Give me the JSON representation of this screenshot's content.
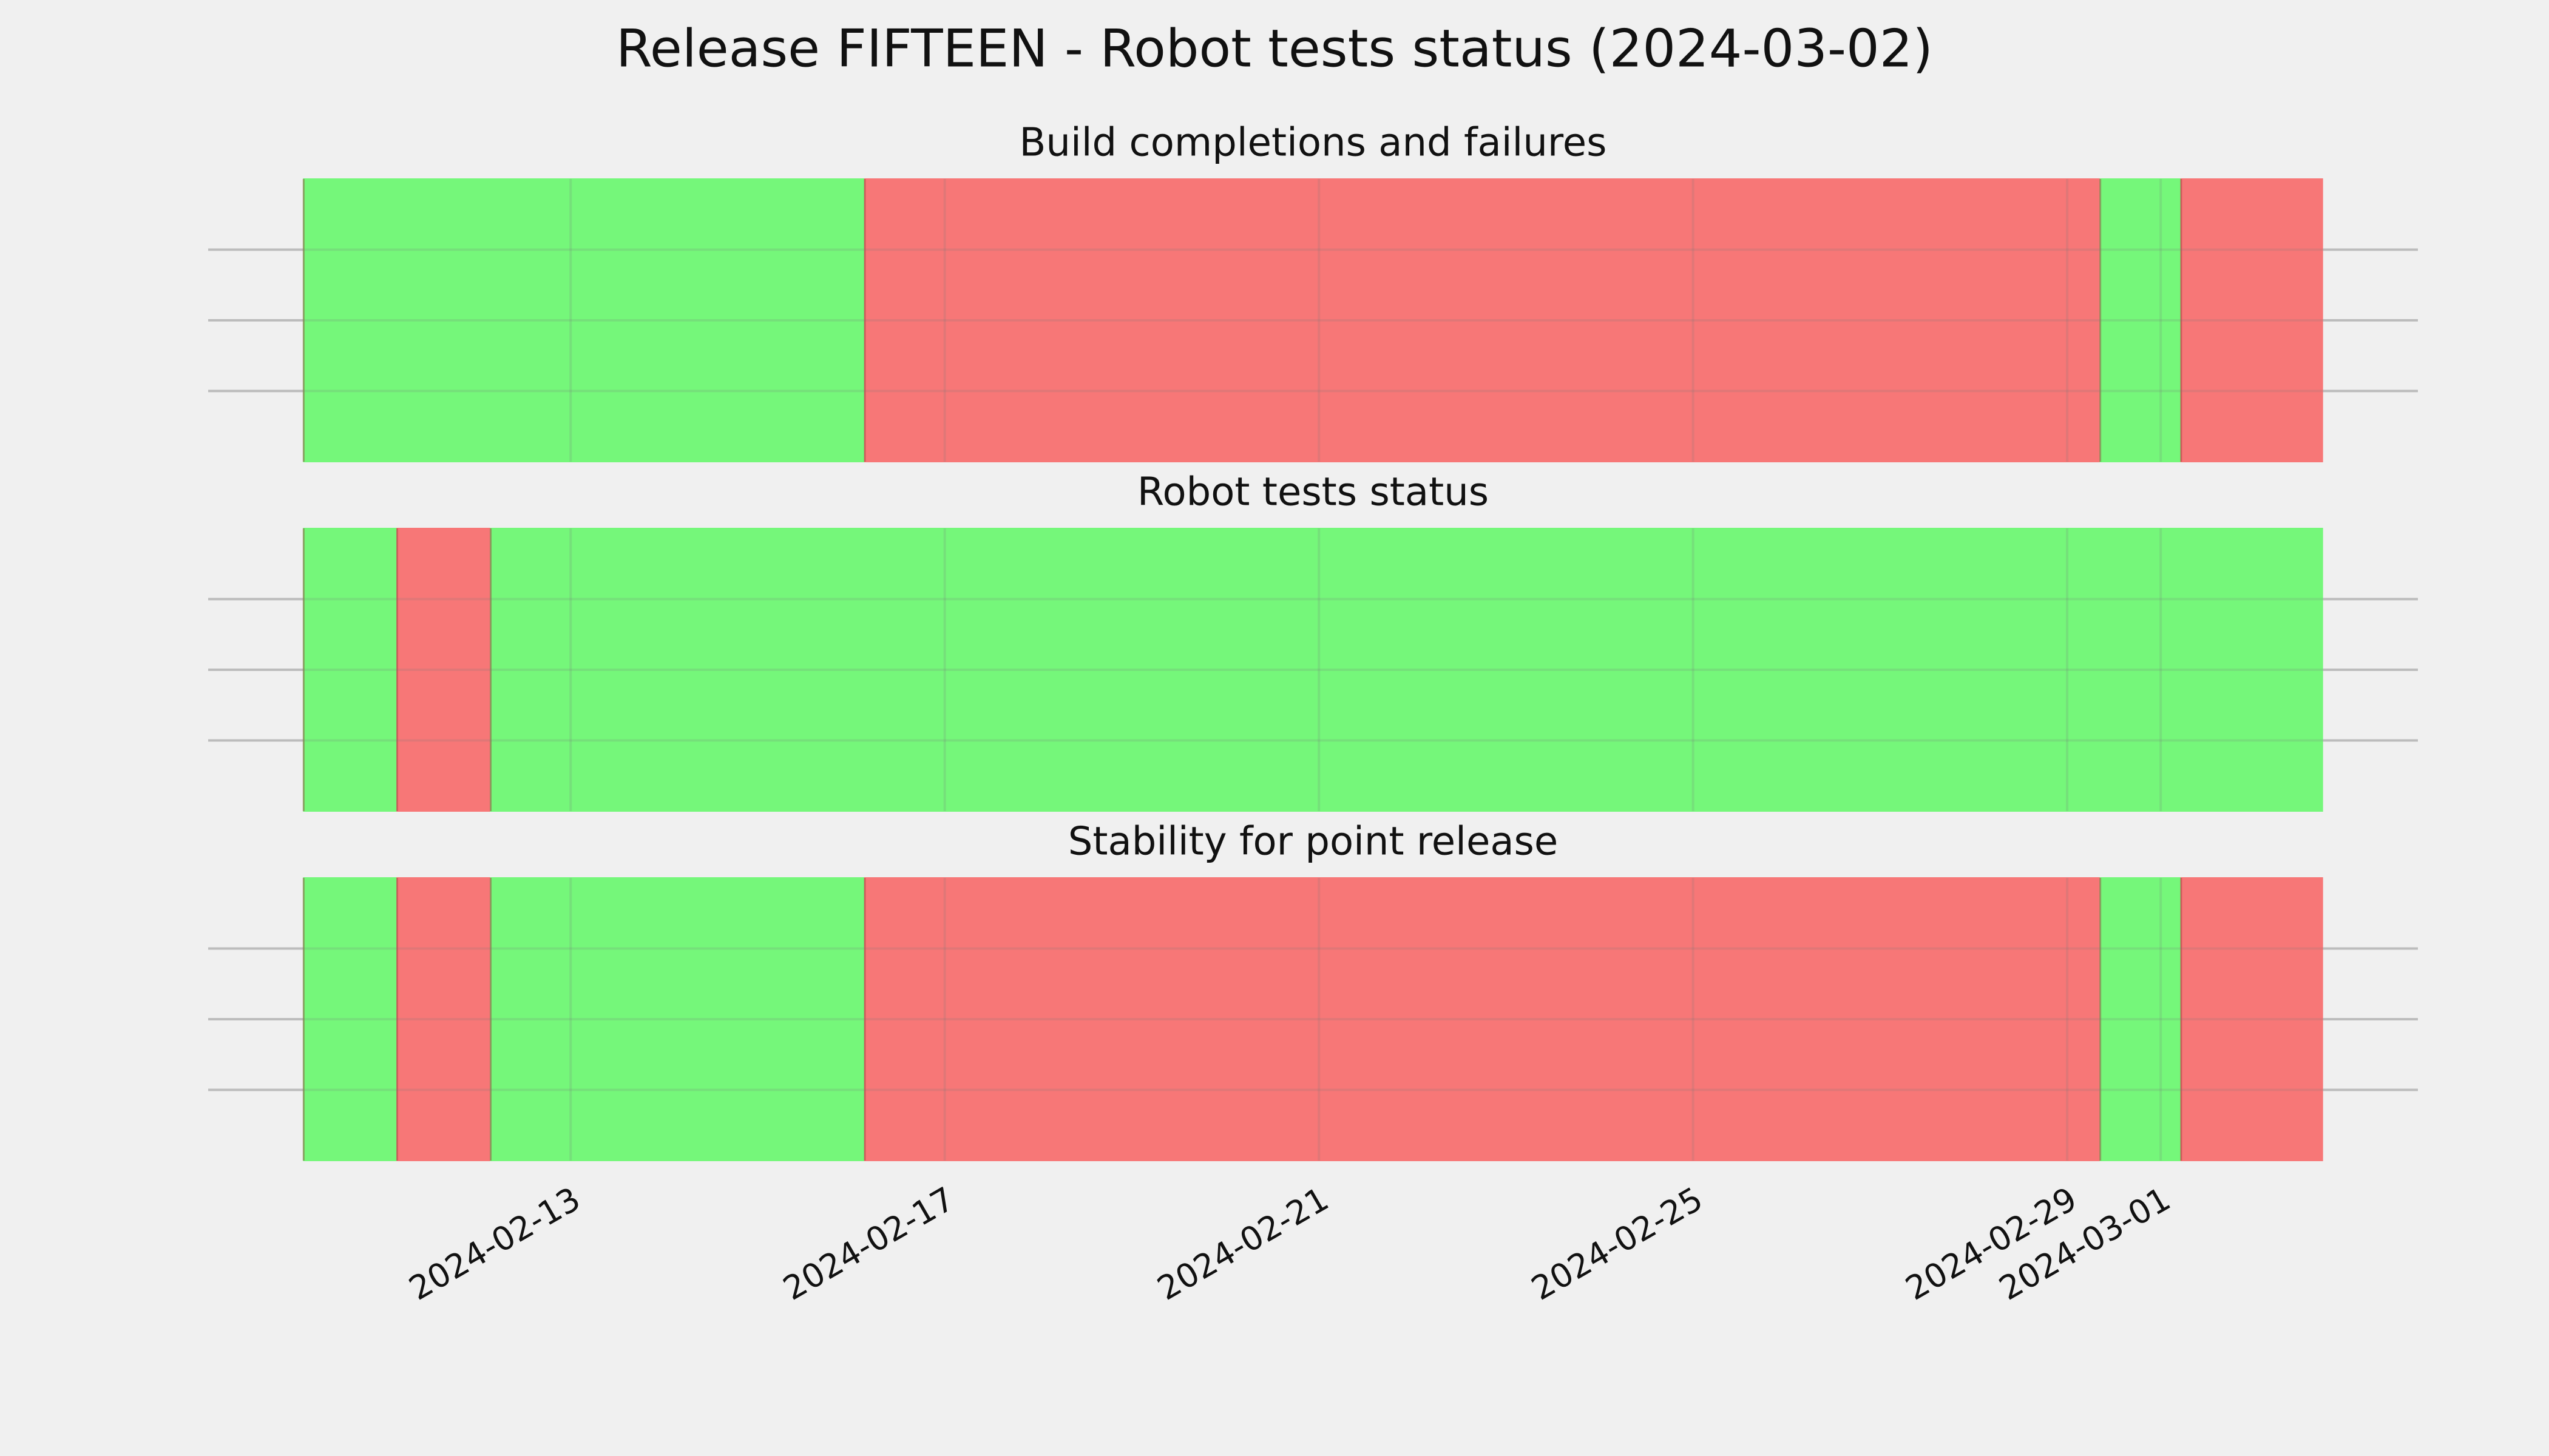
{
  "title": "Release FIFTEEN - Robot tests status (2024-03-02)",
  "chart_data": [
    {
      "type": "timeline",
      "title": "Build completions and failures",
      "segments": [
        {
          "start": "2024-02-10T03:30",
          "end": "2024-02-16T03:30",
          "color": "#75f77a"
        },
        {
          "start": "2024-02-16T03:30",
          "end": "2024-02-29T08:30",
          "color": "#f77777"
        },
        {
          "start": "2024-02-29T08:30",
          "end": "2024-03-01T05:15",
          "color": "#75f77a"
        },
        {
          "start": "2024-03-01T05:15",
          "end": "2024-03-02T17:30",
          "color": "#f77777"
        }
      ],
      "xlim": [
        "2024-02-09T03:00",
        "2024-03-03T18:00"
      ],
      "xticks": [
        "2024-02-13",
        "2024-02-17",
        "2024-02-21",
        "2024-02-25",
        "2024-02-29",
        "2024-03-01"
      ],
      "ylim": [
        0,
        1
      ],
      "yticks": [
        0.25,
        0.5,
        0.75
      ],
      "grid": true
    },
    {
      "type": "timeline",
      "title": "Robot tests status",
      "segments": [
        {
          "start": "2024-02-10T03:30",
          "end": "2024-02-11T03:30",
          "color": "#75f77a"
        },
        {
          "start": "2024-02-11T03:30",
          "end": "2024-02-12T03:30",
          "color": "#f77777"
        },
        {
          "start": "2024-02-12T03:30",
          "end": "2024-03-02T17:30",
          "color": "#75f77a"
        }
      ],
      "xlim": [
        "2024-02-09T03:00",
        "2024-03-03T18:00"
      ],
      "xticks": [
        "2024-02-13",
        "2024-02-17",
        "2024-02-21",
        "2024-02-25",
        "2024-02-29",
        "2024-03-01"
      ],
      "ylim": [
        0,
        1
      ],
      "yticks": [
        0.25,
        0.5,
        0.75
      ],
      "grid": true
    },
    {
      "type": "timeline",
      "title": "Stability for point release",
      "segments": [
        {
          "start": "2024-02-10T03:30",
          "end": "2024-02-11T03:30",
          "color": "#75f77a"
        },
        {
          "start": "2024-02-11T03:30",
          "end": "2024-02-12T03:30",
          "color": "#f77777"
        },
        {
          "start": "2024-02-12T03:30",
          "end": "2024-02-16T03:30",
          "color": "#75f77a"
        },
        {
          "start": "2024-02-16T03:30",
          "end": "2024-02-29T08:30",
          "color": "#f77777"
        },
        {
          "start": "2024-02-29T08:30",
          "end": "2024-03-01T05:15",
          "color": "#75f77a"
        },
        {
          "start": "2024-03-01T05:15",
          "end": "2024-03-02T17:30",
          "color": "#f77777"
        }
      ],
      "xlim": [
        "2024-02-09T03:00",
        "2024-03-03T18:00"
      ],
      "xticks": [
        "2024-02-13",
        "2024-02-17",
        "2024-02-21",
        "2024-02-25",
        "2024-02-29",
        "2024-03-01"
      ],
      "ylim": [
        0,
        1
      ],
      "yticks": [
        0.25,
        0.5,
        0.75
      ],
      "grid": true,
      "show_xtick_labels": true
    }
  ]
}
